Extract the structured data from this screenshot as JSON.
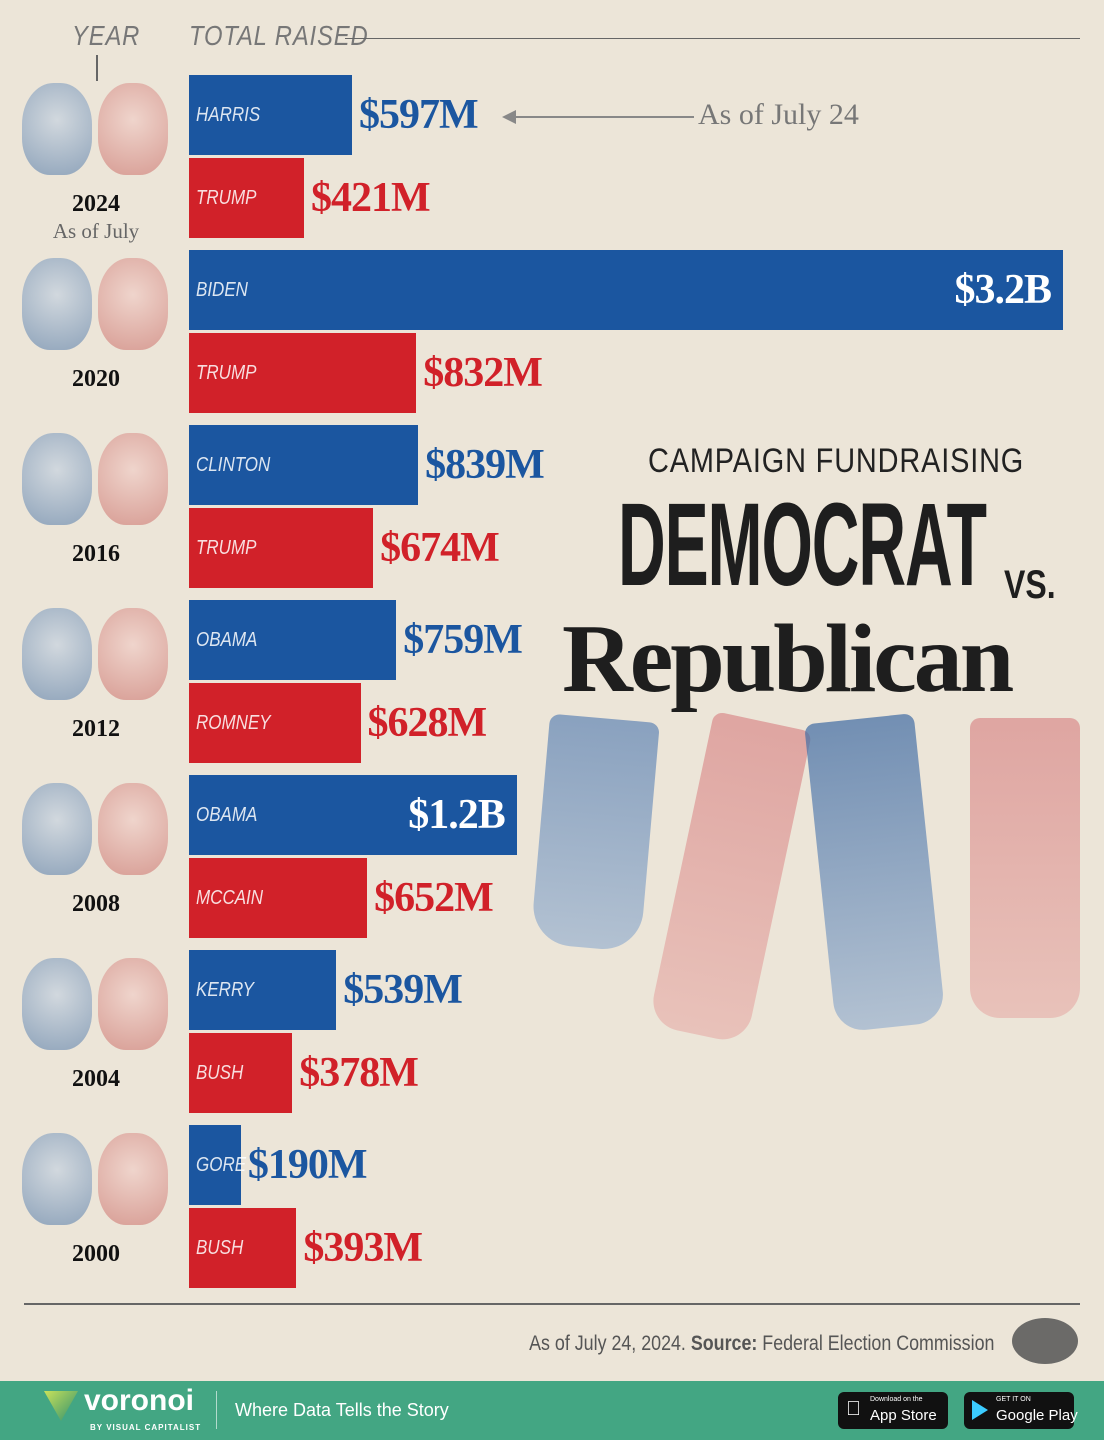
{
  "header": {
    "year_label": "YEAR",
    "total_label": "TOTAL RAISED"
  },
  "annotation": "As of July 24",
  "title": {
    "line1": "CAMPAIGN FUNDRAISING",
    "line2": "DEMOCRAT",
    "vs": "VS.",
    "line3": "Republican"
  },
  "colors": {
    "democrat": "#1b56a0",
    "republican": "#d12129",
    "background": "#ece5d8",
    "footer": "#43a683"
  },
  "chart_data": {
    "type": "bar",
    "orientation": "horizontal",
    "unit": "USD millions",
    "xlim": [
      0,
      3200
    ],
    "groups": [
      {
        "year": "2024",
        "note": "As of July",
        "dem": {
          "name": "HARRIS",
          "value": 597,
          "label": "$597M"
        },
        "rep": {
          "name": "TRUMP",
          "value": 421,
          "label": "$421M"
        }
      },
      {
        "year": "2020",
        "dem": {
          "name": "BIDEN",
          "value": 3200,
          "label": "$3.2B"
        },
        "rep": {
          "name": "TRUMP",
          "value": 832,
          "label": "$832M"
        }
      },
      {
        "year": "2016",
        "dem": {
          "name": "CLINTON",
          "value": 839,
          "label": "$839M"
        },
        "rep": {
          "name": "TRUMP",
          "value": 674,
          "label": "$674M"
        }
      },
      {
        "year": "2012",
        "dem": {
          "name": "OBAMA",
          "value": 759,
          "label": "$759M"
        },
        "rep": {
          "name": "ROMNEY",
          "value": 628,
          "label": "$628M"
        }
      },
      {
        "year": "2008",
        "dem": {
          "name": "OBAMA",
          "value": 1200,
          "label": "$1.2B"
        },
        "rep": {
          "name": "MCCAIN",
          "value": 652,
          "label": "$652M"
        }
      },
      {
        "year": "2004",
        "dem": {
          "name": "KERRY",
          "value": 539,
          "label": "$539M"
        },
        "rep": {
          "name": "BUSH",
          "value": 378,
          "label": "$378M"
        }
      },
      {
        "year": "2000",
        "dem": {
          "name": "GORE",
          "value": 190,
          "label": "$190M"
        },
        "rep": {
          "name": "BUSH",
          "value": 393,
          "label": "$393M"
        }
      }
    ]
  },
  "footer": {
    "note": "As of July 24, 2024.",
    "source_label": "Source:",
    "source": "Federal Election Commission",
    "brand": "voronoi",
    "brand_sub": "BY VISUAL CAPITALIST",
    "tagline": "Where Data Tells the Story",
    "app_store_small": "Download on the",
    "app_store": "App Store",
    "google_small": "GET IT ON",
    "google": "Google Play"
  }
}
